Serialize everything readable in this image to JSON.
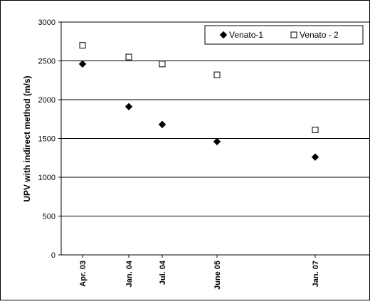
{
  "chart_data": {
    "type": "scatter",
    "title": "",
    "xlabel": "",
    "ylabel": "UPV with indirect method (m/s)",
    "categories": [
      "Apr. 03",
      "Jan. 04",
      "Jul. 04",
      "June 05",
      "Jan. 07"
    ],
    "ylim": [
      0,
      3000
    ],
    "yticks": [
      "0",
      "500",
      "1000",
      "1500",
      "2000",
      "2500",
      "3000"
    ],
    "grid": true,
    "legend_position": "top-right",
    "series": [
      {
        "name": "Venato-1",
        "marker": "filled-diamond",
        "color": "#000000",
        "values": [
          2460,
          1910,
          1680,
          1460,
          1260
        ]
      },
      {
        "name": "Venato - 2",
        "marker": "open-square",
        "color": "#000000",
        "values": [
          2700,
          2550,
          2460,
          2320,
          1610
        ]
      }
    ]
  }
}
